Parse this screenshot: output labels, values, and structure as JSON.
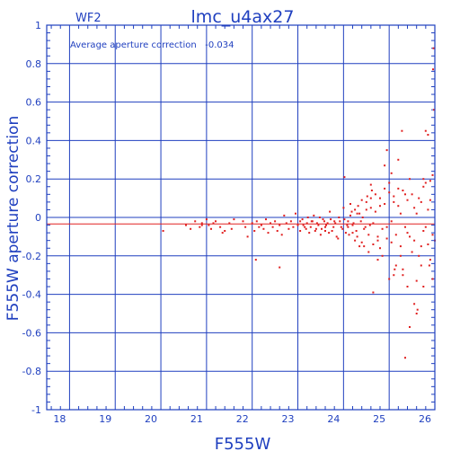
{
  "chart_data": {
    "type": "scatter",
    "title": "lmc_u4ax27",
    "chip_label": "WF2",
    "annotation": "Average aperture correction   -0.034",
    "xlabel": "F555W",
    "ylabel": "F555W aperture correction",
    "xlim": [
      17.5,
      26
    ],
    "ylim": [
      -1,
      1
    ],
    "x_ticks": [
      "18",
      "19",
      "20",
      "21",
      "22",
      "23",
      "24",
      "25",
      "26"
    ],
    "y_ticks": [
      "1",
      "0.8",
      "0.6",
      "0.4",
      "0.2",
      "0",
      "-0.2",
      "-0.4",
      "-0.6",
      "-0.8",
      "-1"
    ],
    "grid": true,
    "hlines": [
      {
        "y": 0,
        "color": "#1f3fbf"
      },
      {
        "y": -0.034,
        "color": "#e02020"
      }
    ],
    "colors": {
      "axes": "#1f3fbf",
      "points": "#e02020"
    },
    "series": [
      {
        "color": "#e02020",
        "points": [
          [
            20.05,
            -0.07
          ],
          [
            20.55,
            -0.04
          ],
          [
            20.65,
            -0.06
          ],
          [
            20.75,
            -0.02
          ],
          [
            20.85,
            -0.05
          ],
          [
            20.9,
            -0.03
          ],
          [
            21.0,
            -0.01
          ],
          [
            21.05,
            -0.04
          ],
          [
            21.1,
            -0.06
          ],
          [
            21.2,
            -0.02
          ],
          [
            21.3,
            -0.05
          ],
          [
            21.35,
            -0.08
          ],
          [
            21.5,
            -0.03
          ],
          [
            21.55,
            -0.06
          ],
          [
            21.6,
            -0.01
          ],
          [
            21.8,
            -0.02
          ],
          [
            21.85,
            -0.05
          ],
          [
            21.9,
            -0.1
          ],
          [
            22.0,
            -0.03
          ],
          [
            22.05,
            -0.07
          ],
          [
            22.1,
            -0.02
          ],
          [
            22.15,
            -0.05
          ],
          [
            22.2,
            -0.04
          ],
          [
            22.25,
            -0.06
          ],
          [
            22.3,
            -0.01
          ],
          [
            22.35,
            -0.08
          ],
          [
            22.4,
            -0.03
          ],
          [
            22.45,
            -0.05
          ],
          [
            22.5,
            -0.02
          ],
          [
            22.55,
            -0.07
          ],
          [
            22.6,
            -0.04
          ],
          [
            22.65,
            -0.09
          ],
          [
            22.7,
            0.01
          ],
          [
            22.75,
            -0.03
          ],
          [
            22.8,
            -0.06
          ],
          [
            22.85,
            -0.02
          ],
          [
            22.9,
            -0.05
          ],
          [
            22.95,
            0.02
          ],
          [
            23.0,
            -0.04
          ],
          [
            23.05,
            -0.07
          ],
          [
            23.1,
            -0.01
          ],
          [
            23.15,
            -0.05
          ],
          [
            23.2,
            -0.03
          ],
          [
            23.25,
            -0.08
          ],
          [
            23.3,
            -0.02
          ],
          [
            23.35,
            0.01
          ],
          [
            23.4,
            -0.06
          ],
          [
            23.45,
            -0.04
          ],
          [
            23.5,
            -0.09
          ],
          [
            23.55,
            -0.01
          ],
          [
            23.6,
            -0.05
          ],
          [
            23.65,
            -0.03
          ],
          [
            23.7,
            0.03
          ],
          [
            23.75,
            -0.07
          ],
          [
            23.8,
            -0.02
          ],
          [
            23.85,
            -0.1
          ],
          [
            23.9,
            0.0
          ],
          [
            23.95,
            -0.05
          ],
          [
            24.0,
            0.05
          ],
          [
            24.05,
            -0.08
          ],
          [
            24.1,
            -0.02
          ],
          [
            24.15,
            0.07
          ],
          [
            24.2,
            -0.04
          ],
          [
            24.25,
            -0.12
          ],
          [
            24.3,
            0.02
          ],
          [
            24.35,
            -0.15
          ],
          [
            24.4,
            0.09
          ],
          [
            24.45,
            -0.06
          ],
          [
            24.5,
            0.04
          ],
          [
            24.55,
            -0.18
          ],
          [
            24.6,
            0.1
          ],
          [
            24.65,
            -0.03
          ],
          [
            24.7,
            0.12
          ],
          [
            24.75,
            -0.1
          ],
          [
            24.8,
            0.06
          ],
          [
            24.85,
            -0.2
          ],
          [
            24.9,
            0.15
          ],
          [
            24.95,
            -0.05
          ],
          [
            25.0,
            0.18
          ],
          [
            25.05,
            -0.13
          ],
          [
            25.1,
            0.08
          ],
          [
            25.15,
            -0.25
          ],
          [
            25.2,
            0.3
          ],
          [
            25.25,
            0.02
          ],
          [
            25.3,
            -0.3
          ],
          [
            25.35,
            0.12
          ],
          [
            25.4,
            -0.08
          ],
          [
            25.45,
            0.2
          ],
          [
            25.5,
            -0.18
          ],
          [
            25.55,
            0.05
          ],
          [
            25.6,
            -0.33
          ],
          [
            25.65,
            0.1
          ],
          [
            25.7,
            -0.15
          ],
          [
            25.75,
            0.16
          ],
          [
            25.8,
            -0.05
          ],
          [
            25.85,
            0.04
          ],
          [
            25.9,
            -0.22
          ],
          [
            25.95,
            0.22
          ],
          [
            25.97,
            0.88
          ],
          [
            25.96,
            0.77
          ],
          [
            25.98,
            0.56
          ],
          [
            25.28,
            0.45
          ],
          [
            25.8,
            0.45
          ],
          [
            25.85,
            0.43
          ],
          [
            24.95,
            0.35
          ],
          [
            24.9,
            0.27
          ],
          [
            25.05,
            0.23
          ],
          [
            24.02,
            0.21
          ],
          [
            25.9,
            0.19
          ],
          [
            25.75,
            0.2
          ],
          [
            24.6,
            0.17
          ],
          [
            25.2,
            0.15
          ],
          [
            20.9,
            -0.04
          ],
          [
            21.15,
            -0.03
          ],
          [
            21.4,
            -0.07
          ],
          [
            22.08,
            -0.22
          ],
          [
            22.6,
            -0.26
          ],
          [
            23.6,
            -0.07
          ],
          [
            24.45,
            -0.15
          ],
          [
            24.8,
            -0.16
          ],
          [
            24.75,
            -0.22
          ],
          [
            25.1,
            -0.3
          ],
          [
            24.65,
            -0.39
          ],
          [
            25.0,
            -0.32
          ],
          [
            25.12,
            -0.27
          ],
          [
            25.4,
            -0.36
          ],
          [
            25.55,
            -0.45
          ],
          [
            25.62,
            -0.48
          ],
          [
            25.75,
            -0.36
          ],
          [
            25.88,
            -0.25
          ],
          [
            25.95,
            -0.32
          ],
          [
            25.45,
            -0.57
          ],
          [
            25.35,
            -0.73
          ],
          [
            25.6,
            -0.5
          ],
          [
            25.3,
            -0.27
          ],
          [
            25.25,
            -0.15
          ],
          [
            25.7,
            -0.25
          ],
          [
            24.1,
            -0.05
          ],
          [
            24.15,
            0.01
          ],
          [
            24.2,
            -0.08
          ],
          [
            24.25,
            0.04
          ],
          [
            24.3,
            -0.1
          ],
          [
            24.35,
            0.02
          ],
          [
            24.4,
            -0.13
          ],
          [
            24.5,
            0.08
          ],
          [
            24.55,
            -0.09
          ],
          [
            24.6,
            0.05
          ],
          [
            24.65,
            -0.14
          ],
          [
            24.7,
            0.03
          ],
          [
            24.75,
            -0.12
          ],
          [
            24.8,
            0.1
          ],
          [
            24.85,
            -0.06
          ],
          [
            24.9,
            0.07
          ],
          [
            24.95,
            -0.11
          ],
          [
            25.0,
            0.13
          ],
          [
            25.05,
            -0.02
          ],
          [
            25.1,
            0.11
          ],
          [
            25.15,
            -0.09
          ],
          [
            25.2,
            0.06
          ],
          [
            25.25,
            -0.2
          ],
          [
            25.3,
            0.14
          ],
          [
            25.35,
            -0.05
          ],
          [
            25.4,
            0.09
          ],
          [
            25.45,
            -0.1
          ],
          [
            25.5,
            0.12
          ],
          [
            25.55,
            -0.12
          ],
          [
            25.6,
            0.02
          ],
          [
            25.65,
            -0.2
          ],
          [
            25.7,
            0.08
          ],
          [
            25.75,
            -0.07
          ],
          [
            25.8,
            0.18
          ],
          [
            25.85,
            -0.14
          ],
          [
            25.9,
            0.09
          ],
          [
            25.95,
            -0.09
          ],
          [
            26.0,
            -0.12
          ],
          [
            23.05,
            -0.02
          ],
          [
            23.12,
            -0.04
          ],
          [
            23.18,
            -0.06
          ],
          [
            23.22,
            0.0
          ],
          [
            23.28,
            -0.05
          ],
          [
            23.32,
            -0.02
          ],
          [
            23.38,
            -0.07
          ],
          [
            23.42,
            -0.03
          ],
          [
            23.48,
            0.0
          ],
          [
            23.52,
            -0.06
          ],
          [
            23.58,
            -0.02
          ],
          [
            23.62,
            -0.04
          ],
          [
            23.68,
            -0.08
          ],
          [
            23.72,
            -0.01
          ],
          [
            23.78,
            -0.05
          ],
          [
            23.82,
            -0.03
          ],
          [
            23.88,
            -0.11
          ],
          [
            23.92,
            -0.02
          ],
          [
            23.98,
            -0.06
          ],
          [
            24.02,
            -0.01
          ],
          [
            24.08,
            -0.04
          ],
          [
            24.12,
            -0.09
          ],
          [
            24.18,
            0.03
          ],
          [
            24.22,
            -0.03
          ],
          [
            24.28,
            -0.07
          ],
          [
            24.32,
            0.06
          ],
          [
            24.38,
            -0.02
          ],
          [
            24.42,
            0.0
          ],
          [
            24.48,
            -0.05
          ],
          [
            24.52,
            0.11
          ],
          [
            24.58,
            -0.04
          ],
          [
            24.62,
            0.14
          ]
        ]
      }
    ]
  }
}
